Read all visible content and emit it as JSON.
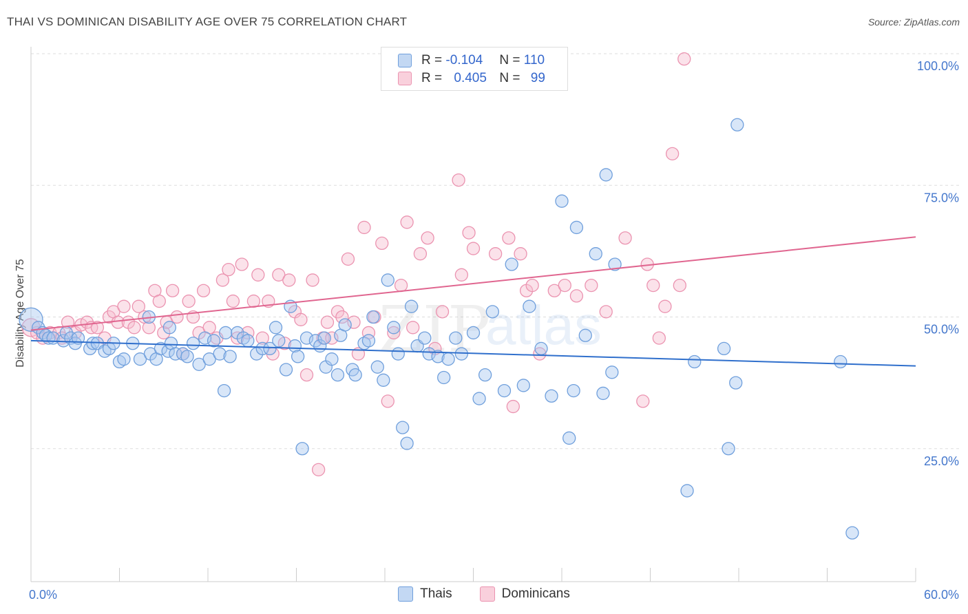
{
  "title": "THAI VS DOMINICAN DISABILITY AGE OVER 75 CORRELATION CHART",
  "source": "Source: ZipAtlas.com",
  "watermark": {
    "zip": "ZIP",
    "atlas": "atlas"
  },
  "legend": {
    "r_label": "R =",
    "n_label": "N =",
    "thais": {
      "r": "-0.104",
      "n": "110"
    },
    "dominicans": {
      "r": "0.405",
      "n": "99"
    }
  },
  "colors": {
    "thais_fill": "#a9c8ef",
    "thais_stroke": "#6f9fdc",
    "thais_line": "#2f6fcc",
    "dominicans_fill": "#f7bfd0",
    "dominicans_stroke": "#eb93b0",
    "dominicans_line": "#e0658f",
    "tick_text": "#4477cc",
    "grid": "#dddddd"
  },
  "chart_data": {
    "type": "scatter",
    "title": "THAI VS DOMINICAN DISABILITY AGE OVER 75 CORRELATION CHART",
    "ylabel": "Disability Age Over 75",
    "xlabel": "",
    "xlim": [
      0,
      60
    ],
    "ylim": [
      0,
      102
    ],
    "x_tick_labels": [
      {
        "value": 0,
        "label": "0.0%"
      },
      {
        "value": 60,
        "label": "60.0%"
      }
    ],
    "y_tick_labels": [
      {
        "value": 25,
        "label": "25.0%"
      },
      {
        "value": 50,
        "label": "50.0%"
      },
      {
        "value": 75,
        "label": "75.0%"
      },
      {
        "value": 100,
        "label": "100.0%"
      }
    ],
    "grid": true,
    "legend_placement": "top-center",
    "series": [
      {
        "name": "Thais",
        "trend": {
          "x": [
            0,
            60
          ],
          "y": [
            45.5,
            40.7
          ]
        },
        "points": [
          [
            0.0,
            49.5
          ],
          [
            0.5,
            48
          ],
          [
            0.8,
            47
          ],
          [
            1.0,
            46.5
          ],
          [
            1.2,
            46
          ],
          [
            1.5,
            46
          ],
          [
            2.2,
            45.5
          ],
          [
            2.4,
            47
          ],
          [
            2.7,
            46
          ],
          [
            3.0,
            45
          ],
          [
            3.2,
            46
          ],
          [
            4.0,
            44
          ],
          [
            4.2,
            45
          ],
          [
            4.5,
            45
          ],
          [
            5.0,
            43.5
          ],
          [
            5.3,
            44
          ],
          [
            5.6,
            45
          ],
          [
            6.0,
            41.5
          ],
          [
            6.3,
            42
          ],
          [
            6.9,
            45
          ],
          [
            7.4,
            42
          ],
          [
            8.0,
            50
          ],
          [
            8.1,
            43
          ],
          [
            8.5,
            42
          ],
          [
            8.8,
            44
          ],
          [
            9.3,
            43.5
          ],
          [
            9.4,
            48
          ],
          [
            9.5,
            45
          ],
          [
            9.8,
            43
          ],
          [
            10.3,
            43
          ],
          [
            10.6,
            42.5
          ],
          [
            11.0,
            45
          ],
          [
            11.4,
            41
          ],
          [
            11.8,
            46
          ],
          [
            12.1,
            42
          ],
          [
            12.4,
            45.5
          ],
          [
            12.8,
            43
          ],
          [
            13.1,
            36
          ],
          [
            13.2,
            47
          ],
          [
            13.5,
            42.5
          ],
          [
            14.0,
            47
          ],
          [
            14.4,
            46
          ],
          [
            14.7,
            45.5
          ],
          [
            15.3,
            43
          ],
          [
            15.7,
            44
          ],
          [
            16.2,
            44
          ],
          [
            16.6,
            48
          ],
          [
            16.8,
            45.5
          ],
          [
            17.3,
            40
          ],
          [
            17.6,
            52
          ],
          [
            17.9,
            44.5
          ],
          [
            18.1,
            42.5
          ],
          [
            18.4,
            25
          ],
          [
            18.7,
            46
          ],
          [
            19.3,
            45.5
          ],
          [
            19.6,
            44.5
          ],
          [
            19.9,
            46
          ],
          [
            20.0,
            40.5
          ],
          [
            20.4,
            42
          ],
          [
            20.8,
            39
          ],
          [
            21.0,
            46.5
          ],
          [
            21.3,
            48.5
          ],
          [
            21.8,
            40
          ],
          [
            22.0,
            39
          ],
          [
            22.6,
            45
          ],
          [
            22.9,
            45.5
          ],
          [
            23.2,
            50
          ],
          [
            23.5,
            40.5
          ],
          [
            23.9,
            38
          ],
          [
            24.2,
            57
          ],
          [
            24.6,
            48
          ],
          [
            24.9,
            43
          ],
          [
            25.2,
            29
          ],
          [
            25.5,
            26
          ],
          [
            25.8,
            52
          ],
          [
            26.2,
            44.5
          ],
          [
            26.7,
            46
          ],
          [
            27.0,
            43
          ],
          [
            27.6,
            42.5
          ],
          [
            28.0,
            38.5
          ],
          [
            28.3,
            42
          ],
          [
            28.8,
            46
          ],
          [
            29.2,
            43
          ],
          [
            30.0,
            47
          ],
          [
            30.4,
            34.5
          ],
          [
            30.8,
            39
          ],
          [
            31.3,
            51
          ],
          [
            32.1,
            36
          ],
          [
            32.6,
            60
          ],
          [
            33.4,
            37
          ],
          [
            33.8,
            52
          ],
          [
            34.6,
            44
          ],
          [
            35.3,
            35
          ],
          [
            36.0,
            72
          ],
          [
            36.5,
            27
          ],
          [
            36.8,
            36
          ],
          [
            37.0,
            67
          ],
          [
            37.6,
            46.5
          ],
          [
            38.3,
            62
          ],
          [
            38.8,
            35.5
          ],
          [
            39.0,
            77
          ],
          [
            39.4,
            39.5
          ],
          [
            39.6,
            60
          ],
          [
            44.5,
            17
          ],
          [
            45.0,
            41.5
          ],
          [
            47.0,
            44
          ],
          [
            47.3,
            25
          ],
          [
            47.8,
            37.5
          ],
          [
            47.9,
            86.5
          ],
          [
            54.9,
            41.5
          ],
          [
            55.7,
            9
          ]
        ]
      },
      {
        "name": "Dominicans",
        "trend": {
          "x": [
            0,
            60
          ],
          "y": [
            47.5,
            65.2
          ]
        },
        "points": [
          [
            0.0,
            48
          ],
          [
            0.4,
            47
          ],
          [
            0.8,
            46
          ],
          [
            1.3,
            47
          ],
          [
            1.9,
            47
          ],
          [
            2.1,
            46
          ],
          [
            2.5,
            49
          ],
          [
            3.0,
            47
          ],
          [
            3.4,
            48.5
          ],
          [
            3.8,
            49
          ],
          [
            4.1,
            48
          ],
          [
            4.5,
            48
          ],
          [
            5.0,
            46
          ],
          [
            5.3,
            50
          ],
          [
            5.6,
            51
          ],
          [
            5.9,
            49
          ],
          [
            6.3,
            52
          ],
          [
            6.6,
            49
          ],
          [
            7.0,
            48
          ],
          [
            7.3,
            52
          ],
          [
            7.7,
            50
          ],
          [
            8.0,
            48
          ],
          [
            8.4,
            55
          ],
          [
            8.7,
            53
          ],
          [
            9.0,
            47
          ],
          [
            9.2,
            49
          ],
          [
            9.6,
            55
          ],
          [
            9.9,
            50
          ],
          [
            10.3,
            43
          ],
          [
            10.7,
            53
          ],
          [
            11.0,
            50
          ],
          [
            11.4,
            47
          ],
          [
            11.7,
            55
          ],
          [
            12.1,
            48
          ],
          [
            12.6,
            46
          ],
          [
            13.0,
            57
          ],
          [
            13.4,
            59
          ],
          [
            13.7,
            53
          ],
          [
            14.0,
            46
          ],
          [
            14.3,
            60
          ],
          [
            14.7,
            47
          ],
          [
            15.1,
            53
          ],
          [
            15.4,
            58
          ],
          [
            15.7,
            46
          ],
          [
            16.1,
            53
          ],
          [
            16.4,
            43
          ],
          [
            16.8,
            58
          ],
          [
            17.2,
            45
          ],
          [
            17.5,
            57
          ],
          [
            17.9,
            51
          ],
          [
            18.3,
            49.5
          ],
          [
            18.7,
            39
          ],
          [
            19.1,
            57
          ],
          [
            19.5,
            21
          ],
          [
            19.8,
            46
          ],
          [
            20.1,
            49
          ],
          [
            20.4,
            46
          ],
          [
            20.8,
            51
          ],
          [
            21.1,
            50
          ],
          [
            21.5,
            61
          ],
          [
            21.9,
            49
          ],
          [
            22.2,
            43
          ],
          [
            22.6,
            67
          ],
          [
            22.9,
            47
          ],
          [
            23.3,
            50
          ],
          [
            23.8,
            64
          ],
          [
            24.2,
            34
          ],
          [
            24.6,
            47
          ],
          [
            25.1,
            56
          ],
          [
            25.5,
            68
          ],
          [
            25.9,
            48
          ],
          [
            26.4,
            62
          ],
          [
            26.9,
            65
          ],
          [
            27.4,
            44
          ],
          [
            27.9,
            51
          ],
          [
            29.0,
            76
          ],
          [
            29.2,
            58
          ],
          [
            29.7,
            66
          ],
          [
            30.0,
            63
          ],
          [
            31.5,
            62
          ],
          [
            32.4,
            65
          ],
          [
            32.7,
            33
          ],
          [
            33.2,
            62
          ],
          [
            33.6,
            55
          ],
          [
            34.0,
            56
          ],
          [
            34.5,
            43
          ],
          [
            35.5,
            55
          ],
          [
            36.2,
            56
          ],
          [
            37.0,
            54
          ],
          [
            38.0,
            56
          ],
          [
            39.0,
            51
          ],
          [
            40.3,
            65
          ],
          [
            41.5,
            34
          ],
          [
            41.8,
            60
          ],
          [
            42.2,
            56
          ],
          [
            42.6,
            46
          ],
          [
            43.0,
            52
          ],
          [
            43.5,
            81
          ],
          [
            44.0,
            56
          ],
          [
            44.3,
            99
          ]
        ]
      }
    ]
  },
  "bottom_legend": [
    "Thais",
    "Dominicans"
  ]
}
